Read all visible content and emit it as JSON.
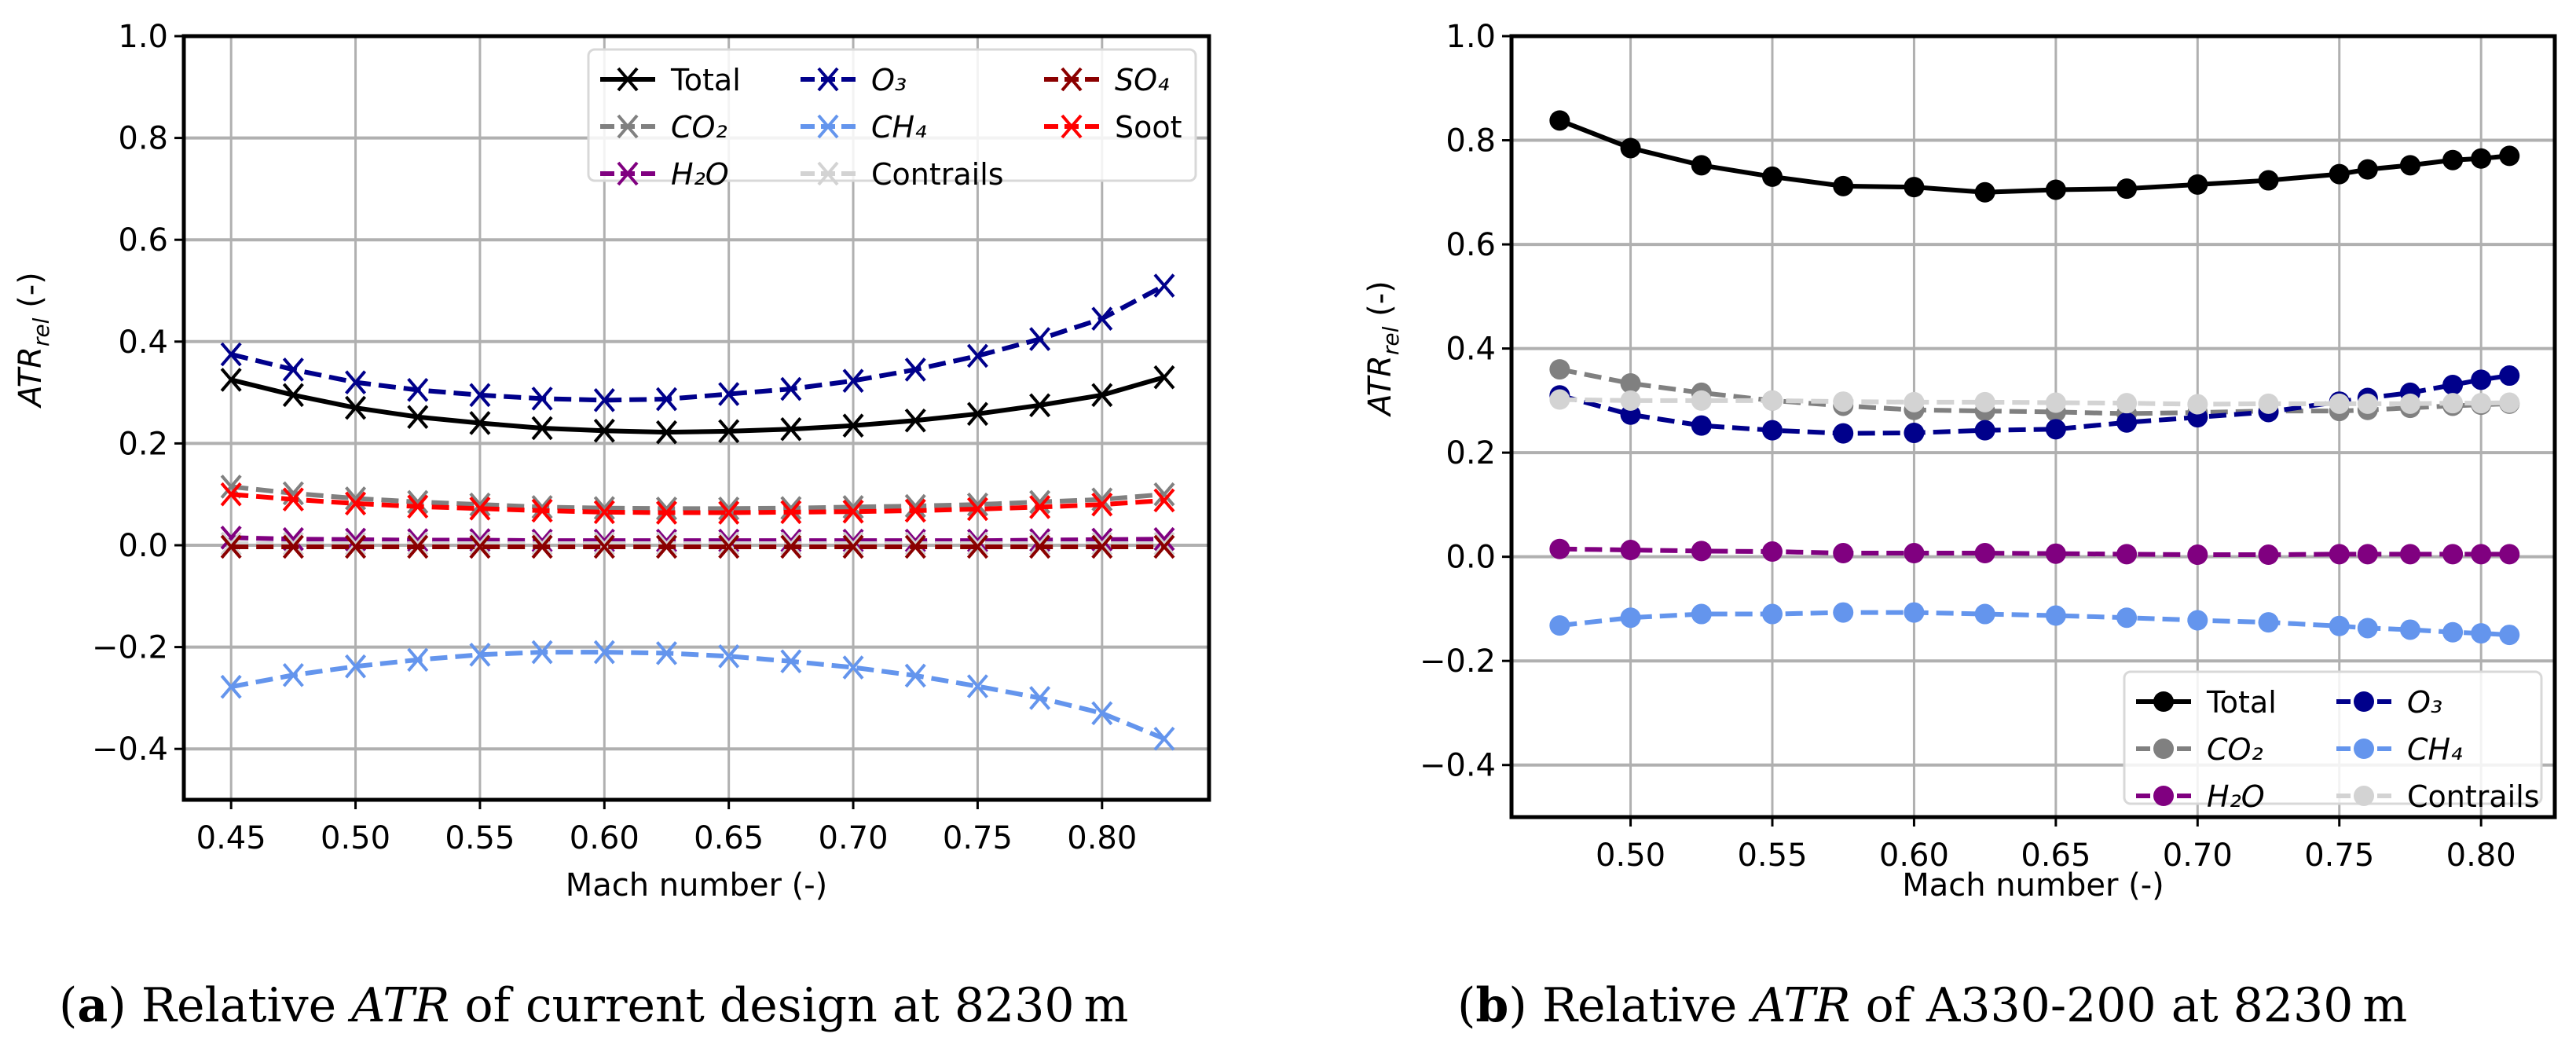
{
  "chart_data": [
    {
      "type": "line",
      "marker": "x",
      "xlabel": "Mach number (-)",
      "ylabel_main": "ATR",
      "ylabel_sub": "rel",
      "ylabel_suffix": " (-)",
      "xlim": [
        0.431,
        0.843
      ],
      "ylim": [
        -0.5,
        1.0
      ],
      "xticks": [
        0.45,
        0.5,
        0.55,
        0.6,
        0.65,
        0.7,
        0.75,
        0.8
      ],
      "xtick_labels": [
        "0.45",
        "0.50",
        "0.55",
        "0.60",
        "0.65",
        "0.70",
        "0.75",
        "0.80"
      ],
      "yticks": [
        -0.4,
        -0.2,
        0.0,
        0.2,
        0.4,
        0.6,
        0.8,
        1.0
      ],
      "ytick_labels": [
        "−0.4",
        "−0.2",
        "0.0",
        "0.2",
        "0.4",
        "0.6",
        "0.8",
        "1.0"
      ],
      "grid": true,
      "legend_placement": "top-right",
      "legend_columns": 3,
      "caption": {
        "label": "a",
        "pre": "Relative ",
        "italic": "ATR",
        "post": " of current design at 8230 m"
      },
      "x": [
        0.45,
        0.475,
        0.5,
        0.525,
        0.55,
        0.575,
        0.6,
        0.625,
        0.65,
        0.675,
        0.7,
        0.725,
        0.75,
        0.775,
        0.8,
        0.825
      ],
      "series": [
        {
          "name": "Total",
          "color": "#000000",
          "dashed": false,
          "values": [
            0.325,
            0.295,
            0.27,
            0.252,
            0.24,
            0.23,
            0.225,
            0.222,
            0.224,
            0.228,
            0.235,
            0.245,
            0.258,
            0.275,
            0.295,
            0.33
          ]
        },
        {
          "name": "CO₂",
          "color": "#808080",
          "dashed": true,
          "values": [
            0.115,
            0.102,
            0.092,
            0.085,
            0.08,
            0.075,
            0.073,
            0.072,
            0.072,
            0.073,
            0.075,
            0.077,
            0.08,
            0.085,
            0.09,
            0.1
          ]
        },
        {
          "name": "H₂O",
          "color": "#800080",
          "dashed": true,
          "values": [
            0.015,
            0.012,
            0.011,
            0.01,
            0.01,
            0.009,
            0.009,
            0.009,
            0.009,
            0.009,
            0.009,
            0.009,
            0.009,
            0.01,
            0.011,
            0.012
          ]
        },
        {
          "name": "O₃",
          "color": "#00008b",
          "dashed": true,
          "values": [
            0.375,
            0.345,
            0.32,
            0.305,
            0.295,
            0.288,
            0.285,
            0.287,
            0.297,
            0.307,
            0.323,
            0.345,
            0.372,
            0.405,
            0.445,
            0.51
          ]
        },
        {
          "name": "CH₄",
          "color": "#6495ed",
          "dashed": true,
          "values": [
            -0.278,
            -0.255,
            -0.238,
            -0.225,
            -0.215,
            -0.21,
            -0.21,
            -0.212,
            -0.218,
            -0.228,
            -0.24,
            -0.256,
            -0.277,
            -0.3,
            -0.33,
            -0.38
          ]
        },
        {
          "name": "Contrails",
          "color": "#d3d3d3",
          "dashed": true,
          "values": [
            0.003,
            0.003,
            0.003,
            0.003,
            0.003,
            0.003,
            0.003,
            0.003,
            0.003,
            0.003,
            0.003,
            0.003,
            0.003,
            0.003,
            0.003,
            0.003
          ]
        },
        {
          "name": "SO₄",
          "color": "#8b0000",
          "dashed": true,
          "values": [
            -0.003,
            -0.003,
            -0.003,
            -0.003,
            -0.003,
            -0.003,
            -0.003,
            -0.003,
            -0.003,
            -0.003,
            -0.003,
            -0.003,
            -0.003,
            -0.003,
            -0.003,
            -0.003
          ]
        },
        {
          "name": "Soot",
          "color": "#ff0000",
          "dashed": true,
          "values": [
            0.1,
            0.09,
            0.082,
            0.076,
            0.072,
            0.068,
            0.065,
            0.064,
            0.064,
            0.065,
            0.066,
            0.068,
            0.071,
            0.075,
            0.08,
            0.088
          ]
        }
      ]
    },
    {
      "type": "line",
      "marker": "circle",
      "xlabel": "Mach number (-)",
      "ylabel_main": "ATR",
      "ylabel_sub": "rel",
      "ylabel_suffix": " (-)",
      "xlim": [
        0.458,
        0.826
      ],
      "ylim": [
        -0.5,
        1.0
      ],
      "xticks": [
        0.5,
        0.55,
        0.6,
        0.65,
        0.7,
        0.75,
        0.8
      ],
      "xtick_labels": [
        "0.50",
        "0.55",
        "0.60",
        "0.65",
        "0.70",
        "0.75",
        "0.80"
      ],
      "yticks": [
        -0.4,
        -0.2,
        0.0,
        0.2,
        0.4,
        0.6,
        0.8,
        1.0
      ],
      "ytick_labels": [
        "−0.4",
        "−0.2",
        "0.0",
        "0.2",
        "0.4",
        "0.6",
        "0.8",
        "1.0"
      ],
      "grid": true,
      "legend_placement": "bottom-right",
      "legend_columns": 2,
      "caption": {
        "label": "b",
        "pre": "Relative ",
        "italic": "ATR",
        "post": " of A330-200 at 8230 m"
      },
      "x": [
        0.475,
        0.5,
        0.525,
        0.55,
        0.575,
        0.6,
        0.625,
        0.65,
        0.675,
        0.7,
        0.725,
        0.75,
        0.76,
        0.775,
        0.79,
        0.8,
        0.81
      ],
      "series": [
        {
          "name": "Total",
          "color": "#000000",
          "dashed": false,
          "values": [
            0.838,
            0.785,
            0.752,
            0.73,
            0.712,
            0.71,
            0.7,
            0.705,
            0.707,
            0.715,
            0.723,
            0.735,
            0.744,
            0.752,
            0.762,
            0.765,
            0.77
          ]
        },
        {
          "name": "CO₂",
          "color": "#808080",
          "dashed": true,
          "values": [
            0.36,
            0.333,
            0.315,
            0.3,
            0.29,
            0.282,
            0.28,
            0.278,
            0.275,
            0.277,
            0.28,
            0.28,
            0.282,
            0.286,
            0.29,
            0.292,
            0.294
          ]
        },
        {
          "name": "H₂O",
          "color": "#800080",
          "dashed": true,
          "values": [
            0.015,
            0.013,
            0.011,
            0.01,
            0.007,
            0.007,
            0.007,
            0.006,
            0.005,
            0.004,
            0.004,
            0.005,
            0.005,
            0.005,
            0.005,
            0.005,
            0.005
          ]
        },
        {
          "name": "O₃",
          "color": "#00008b",
          "dashed": true,
          "values": [
            0.31,
            0.273,
            0.252,
            0.243,
            0.237,
            0.238,
            0.243,
            0.245,
            0.258,
            0.268,
            0.278,
            0.298,
            0.305,
            0.315,
            0.33,
            0.34,
            0.348
          ]
        },
        {
          "name": "CH₄",
          "color": "#6495ed",
          "dashed": true,
          "values": [
            -0.132,
            -0.117,
            -0.11,
            -0.11,
            -0.107,
            -0.107,
            -0.11,
            -0.113,
            -0.117,
            -0.122,
            -0.126,
            -0.133,
            -0.137,
            -0.14,
            -0.145,
            -0.147,
            -0.15
          ]
        },
        {
          "name": "Contrails",
          "color": "#d3d3d3",
          "dashed": true,
          "values": [
            0.302,
            0.3,
            0.3,
            0.3,
            0.298,
            0.297,
            0.297,
            0.296,
            0.295,
            0.293,
            0.294,
            0.294,
            0.294,
            0.294,
            0.295,
            0.295,
            0.296
          ]
        }
      ]
    }
  ]
}
